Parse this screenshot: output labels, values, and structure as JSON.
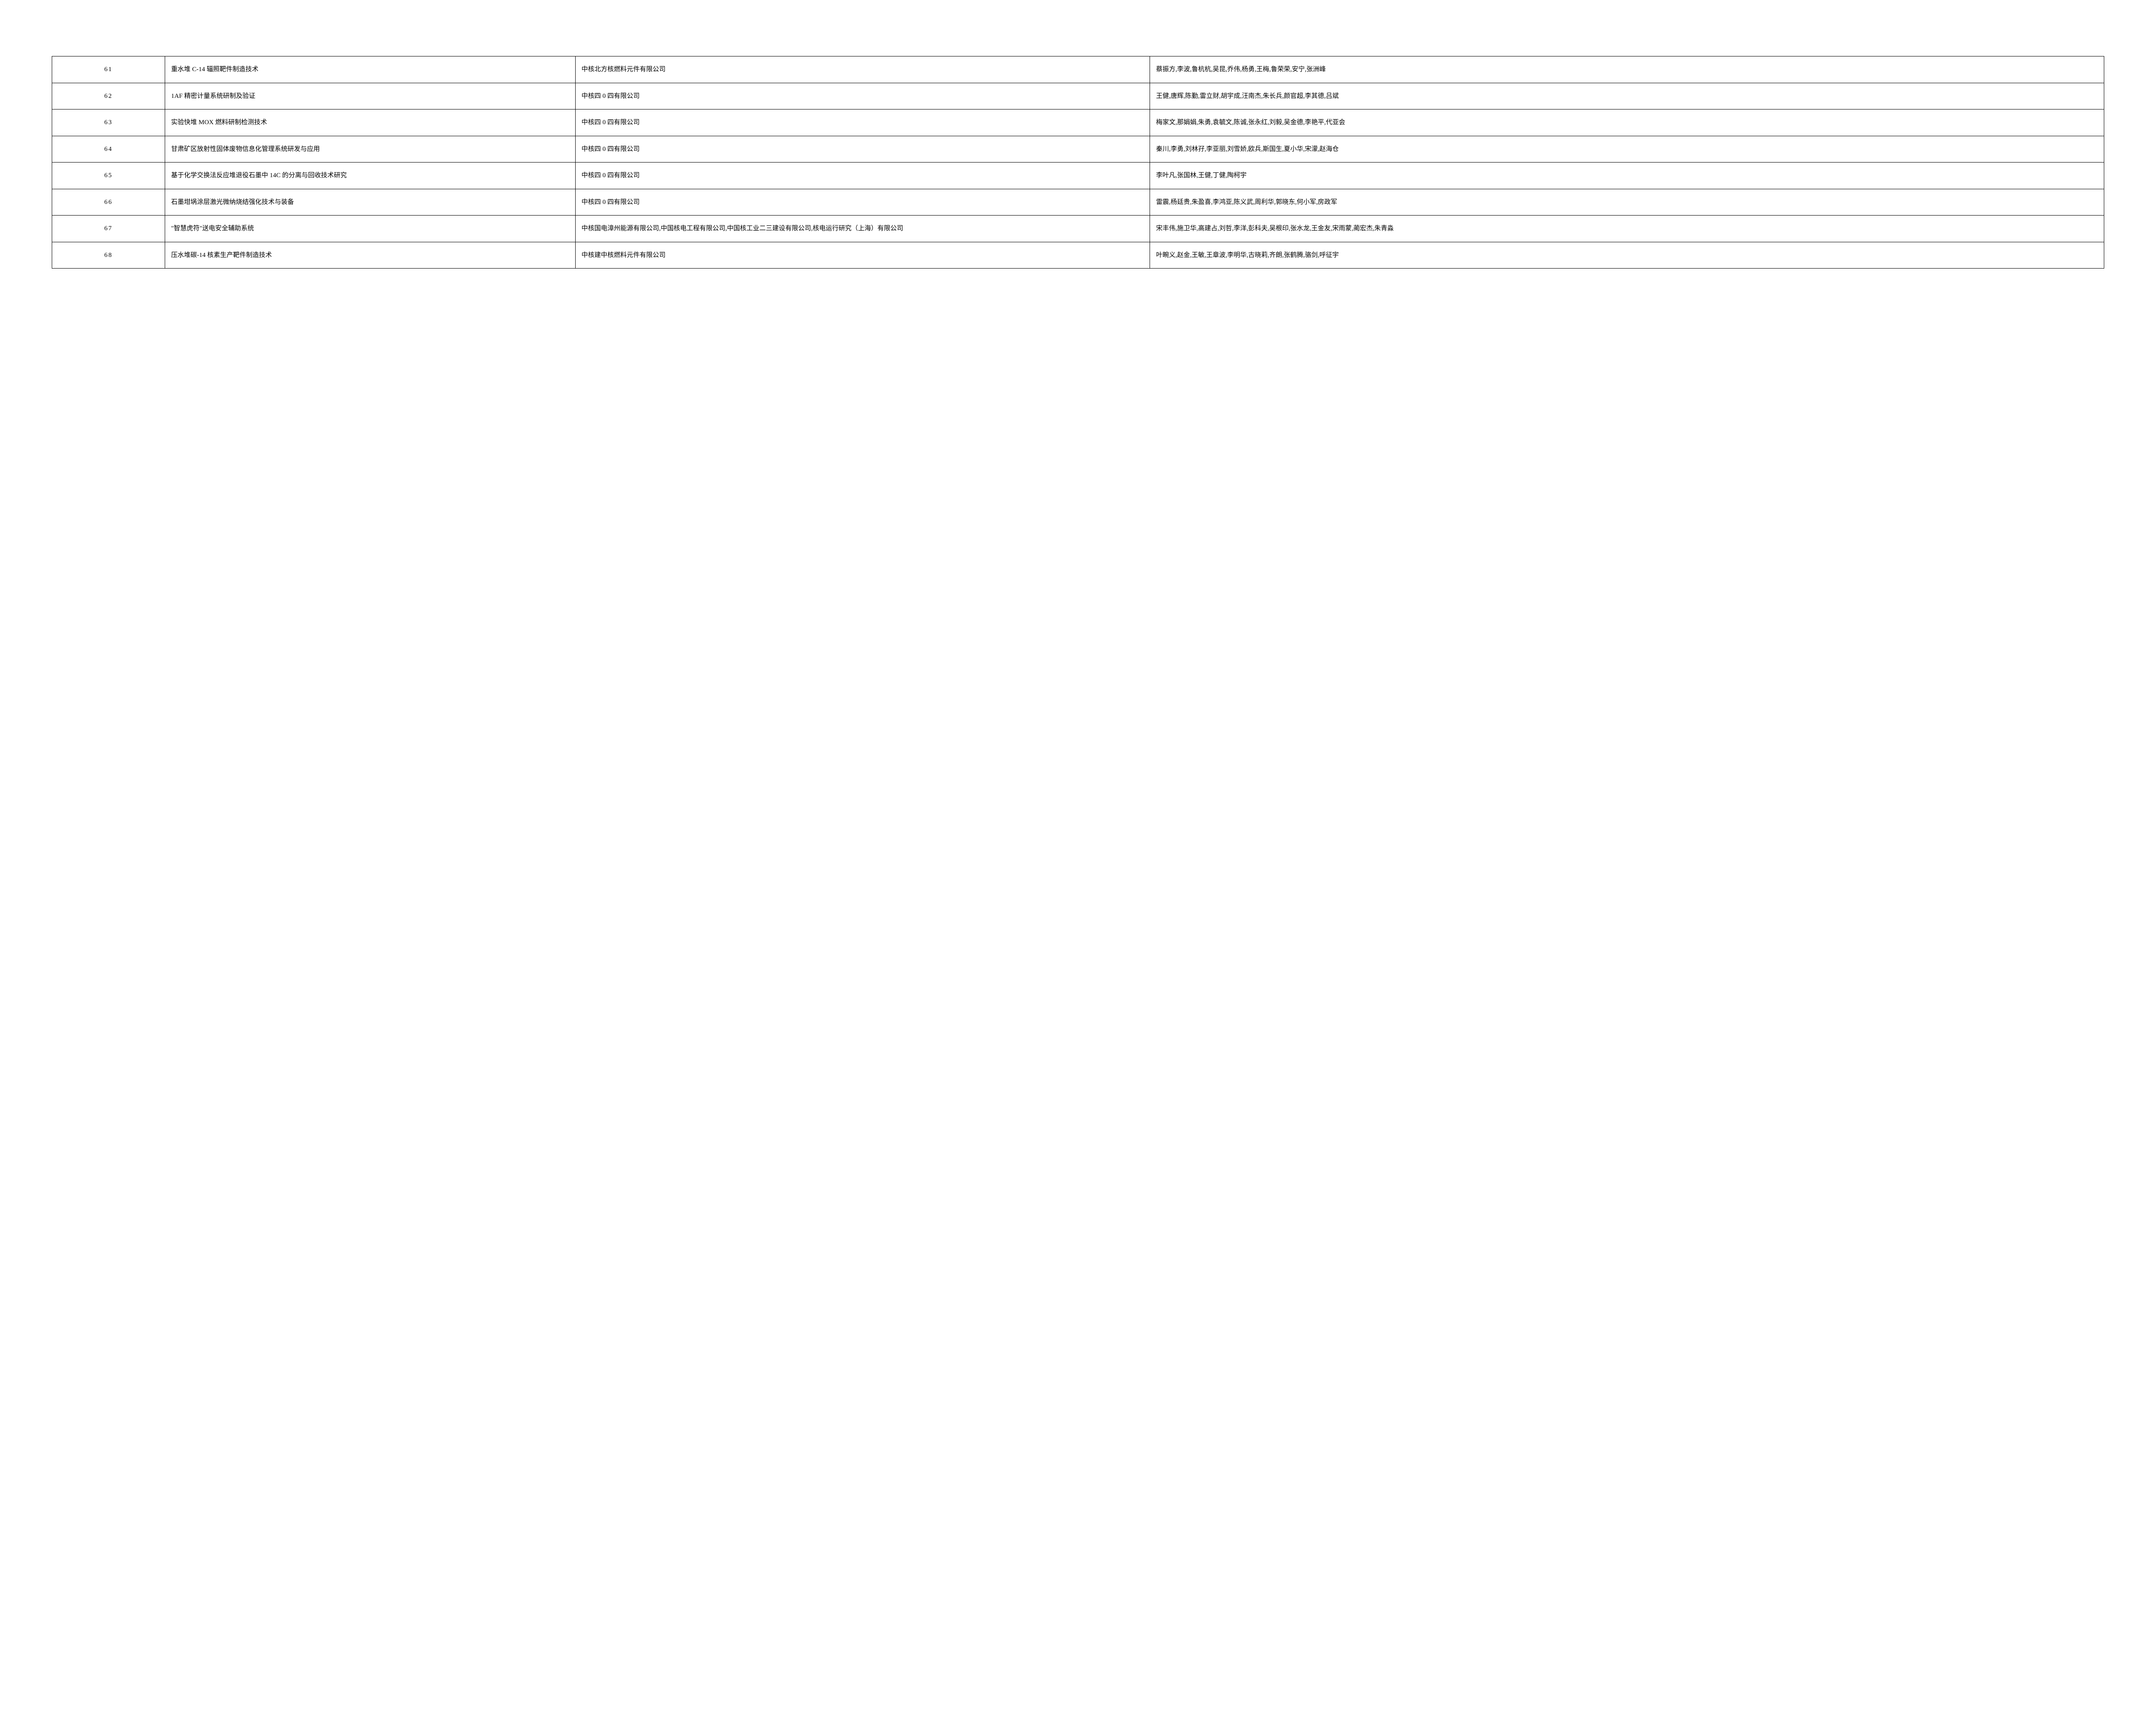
{
  "table": {
    "columns": [
      {
        "key": "num",
        "class": "col-num"
      },
      {
        "key": "title",
        "class": "col-title"
      },
      {
        "key": "org",
        "class": "col-org"
      },
      {
        "key": "people",
        "class": "col-people"
      }
    ],
    "rows": [
      {
        "num": "61",
        "title": "重水堆 C-14 辐照靶件制造技术",
        "org": "中核北方核燃料元件有限公司",
        "people": "蔡振方,李波,鲁杭杭,吴昆,乔伟,杨勇,王梅,鲁荣荣,安宁,张洲峰"
      },
      {
        "num": "62",
        "title": "1AF 精密计量系统研制及验证",
        "org": "中核四 0 四有限公司",
        "people": "王健,唐辉,陈勤,雷立财,胡宇成,汪南杰,朱长兵,颜官超,李其德,吕斌"
      },
      {
        "num": "63",
        "title": "实验快堆 MOX 燃料研制检测技术",
        "org": "中核四 0 四有限公司",
        "people": "梅家文,那娟娟,朱勇,袁毓文,陈诚,张永红,刘毅,吴金德,李艳平,代亚会"
      },
      {
        "num": "64",
        "title": "甘肃矿区放射性固体废物信息化管理系统研发与应用",
        "org": "中核四 0 四有限公司",
        "people": "秦川,李勇,刘林孖,李亚丽,刘雪娇,欧兵,斯国生,夏小华,宋濛,赵海仓"
      },
      {
        "num": "65",
        "title": "基于化学交换法反应堆退役石墨中 14C 的分离与回收技术研究",
        "org": "中核四 0 四有限公司",
        "people": "李叶凡,张国林,王健,丁健,陶柯宇"
      },
      {
        "num": "66",
        "title": "石墨坩埚涂层激光微纳烧结强化技术与装备",
        "org": "中核四 0 四有限公司",
        "people": "雷震,杨廷贵,朱盈喜,李鸿亚,陈义武,周利华,郭晓东,何小军,房政军"
      },
      {
        "num": "67",
        "title": "\"智慧虎符\"送电安全辅助系统",
        "org": "中核国电漳州能源有限公司,中国核电工程有限公司,中国核工业二三建设有限公司,核电运行研究（上海）有限公司",
        "people": "宋丰伟,施卫华,高建占,刘哲,李洋,彭科夫,吴根印,张水龙,王金友,宋雨蒙,蔺宏杰,朱青淼"
      },
      {
        "num": "68",
        "title": "压水堆碳-14 核素生产靶件制造技术",
        "org": "中核建中核燃料元件有限公司",
        "people": "叶畹义,赵金,王敏,王章波,李明华,古晓莉,齐朗,张鹤腾,骆剑,呼征宇"
      }
    ]
  }
}
